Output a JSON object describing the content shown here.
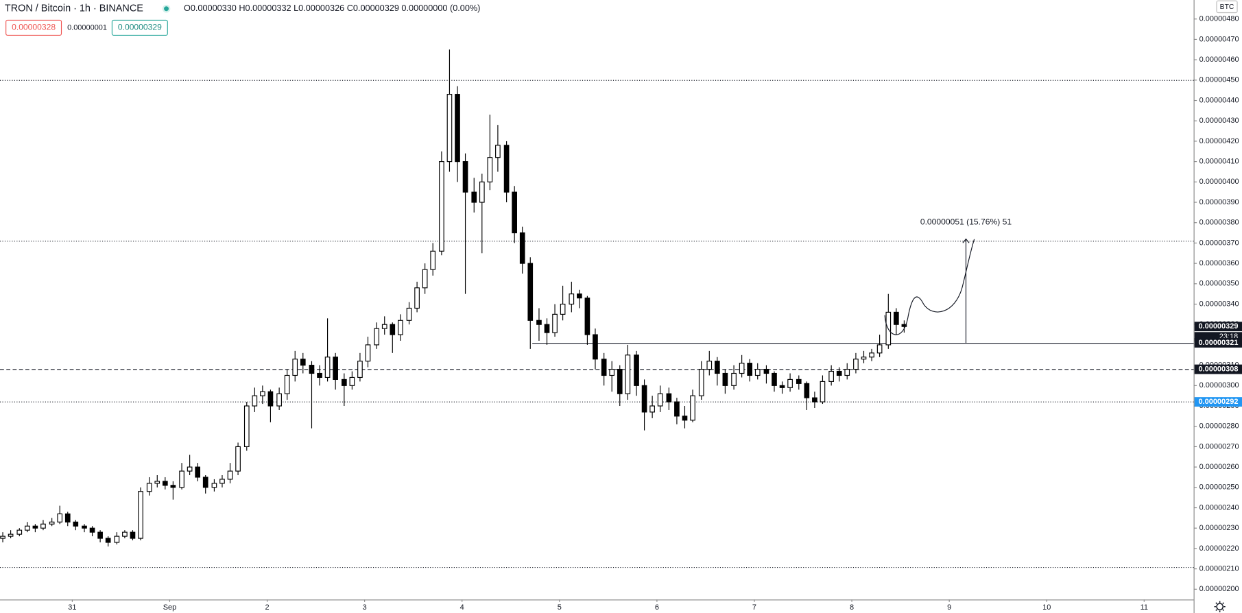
{
  "header": {
    "symbol": "TRON / Bitcoin · 1h · BINANCE",
    "ohlc_text": "O0.00000330 H0.00000332 L0.00000326 C0.00000329 0.00000000 (0.00%)",
    "bid": "0.00000328",
    "spread": "0.00000001",
    "ask": "0.00000329"
  },
  "chart_data": {
    "type": "candlestick",
    "currency": "BTC",
    "up_color": "#ffffff",
    "down_color": "#000000",
    "outline_color": "#000000",
    "grid": false,
    "xlim": [
      -0.3,
      146.7
    ],
    "ylim": [
      1.9533e-06,
      4.8933e-06
    ],
    "xticks": [
      {
        "value": 8.6,
        "label": "31"
      },
      {
        "value": 20.6,
        "label": "Sep"
      },
      {
        "value": 32.6,
        "label": "2"
      },
      {
        "value": 44.6,
        "label": "3"
      },
      {
        "value": 56.6,
        "label": "4"
      },
      {
        "value": 68.6,
        "label": "5"
      },
      {
        "value": 80.6,
        "label": "6"
      },
      {
        "value": 92.6,
        "label": "7"
      },
      {
        "value": 104.6,
        "label": "8"
      },
      {
        "value": 116.6,
        "label": "9"
      },
      {
        "value": 128.6,
        "label": "10"
      },
      {
        "value": 140.6,
        "label": "11"
      }
    ],
    "yticks": [
      {
        "value": 4.8e-06,
        "label": "0.00000480"
      },
      {
        "value": 4.7e-06,
        "label": "0.00000470"
      },
      {
        "value": 4.6e-06,
        "label": "0.00000460"
      },
      {
        "value": 4.5e-06,
        "label": "0.00000450"
      },
      {
        "value": 4.4e-06,
        "label": "0.00000440"
      },
      {
        "value": 4.3e-06,
        "label": "0.00000430"
      },
      {
        "value": 4.2e-06,
        "label": "0.00000420"
      },
      {
        "value": 4.1e-06,
        "label": "0.00000410"
      },
      {
        "value": 4e-06,
        "label": "0.00000400"
      },
      {
        "value": 3.9e-06,
        "label": "0.00000390"
      },
      {
        "value": 3.8e-06,
        "label": "0.00000380"
      },
      {
        "value": 3.7e-06,
        "label": "0.00000370"
      },
      {
        "value": 3.6e-06,
        "label": "0.00000360"
      },
      {
        "value": 3.5e-06,
        "label": "0.00000350"
      },
      {
        "value": 3.4e-06,
        "label": "0.00000340"
      },
      {
        "value": 3.3e-06,
        "label": "0.00000330"
      },
      {
        "value": 3.2e-06,
        "label": "0.00000320"
      },
      {
        "value": 3.1e-06,
        "label": "0.00000310"
      },
      {
        "value": 3e-06,
        "label": "0.00000300"
      },
      {
        "value": 2.9e-06,
        "label": "0.00000290"
      },
      {
        "value": 2.8e-06,
        "label": "0.00000280"
      },
      {
        "value": 2.7e-06,
        "label": "0.00000270"
      },
      {
        "value": 2.6e-06,
        "label": "0.00000260"
      },
      {
        "value": 2.5e-06,
        "label": "0.00000250"
      },
      {
        "value": 2.4e-06,
        "label": "0.00000240"
      },
      {
        "value": 2.3e-06,
        "label": "0.00000230"
      },
      {
        "value": 2.2e-06,
        "label": "0.00000220"
      },
      {
        "value": 2.1e-06,
        "label": "0.00000210"
      },
      {
        "value": 2e-06,
        "label": "0.00000200"
      }
    ],
    "ohlc": [
      [
        2.25e-06,
        2.28e-06,
        2.23e-06,
        2.26e-06
      ],
      [
        2.26e-06,
        2.29e-06,
        2.25e-06,
        2.27e-06
      ],
      [
        2.27e-06,
        2.3e-06,
        2.26e-06,
        2.29e-06
      ],
      [
        2.29e-06,
        2.33e-06,
        2.28e-06,
        2.31e-06
      ],
      [
        2.31e-06,
        2.32e-06,
        2.28e-06,
        2.3e-06
      ],
      [
        2.3e-06,
        2.34e-06,
        2.29e-06,
        2.32e-06
      ],
      [
        2.32e-06,
        2.35e-06,
        2.31e-06,
        2.33e-06
      ],
      [
        2.33e-06,
        2.41e-06,
        2.32e-06,
        2.37e-06
      ],
      [
        2.37e-06,
        2.38e-06,
        2.31e-06,
        2.33e-06
      ],
      [
        2.33e-06,
        2.34e-06,
        2.29e-06,
        2.31e-06
      ],
      [
        2.31e-06,
        2.32e-06,
        2.28e-06,
        2.3e-06
      ],
      [
        2.3e-06,
        2.31e-06,
        2.26e-06,
        2.28e-06
      ],
      [
        2.28e-06,
        2.29e-06,
        2.23e-06,
        2.25e-06
      ],
      [
        2.25e-06,
        2.26e-06,
        2.21e-06,
        2.23e-06
      ],
      [
        2.23e-06,
        2.28e-06,
        2.22e-06,
        2.26e-06
      ],
      [
        2.26e-06,
        2.29e-06,
        2.25e-06,
        2.28e-06
      ],
      [
        2.28e-06,
        2.29e-06,
        2.24e-06,
        2.25e-06
      ],
      [
        2.25e-06,
        2.5e-06,
        2.24e-06,
        2.48e-06
      ],
      [
        2.48e-06,
        2.55e-06,
        2.46e-06,
        2.52e-06
      ],
      [
        2.52e-06,
        2.56e-06,
        2.5e-06,
        2.53e-06
      ],
      [
        2.53e-06,
        2.55e-06,
        2.49e-06,
        2.51e-06
      ],
      [
        2.51e-06,
        2.53e-06,
        2.44e-06,
        2.5e-06
      ],
      [
        2.5e-06,
        2.62e-06,
        2.49e-06,
        2.58e-06
      ],
      [
        2.58e-06,
        2.66e-06,
        2.56e-06,
        2.6e-06
      ],
      [
        2.6e-06,
        2.62e-06,
        2.53e-06,
        2.55e-06
      ],
      [
        2.55e-06,
        2.56e-06,
        2.47e-06,
        2.5e-06
      ],
      [
        2.5e-06,
        2.54e-06,
        2.48e-06,
        2.52e-06
      ],
      [
        2.52e-06,
        2.56e-06,
        2.5e-06,
        2.54e-06
      ],
      [
        2.54e-06,
        2.62e-06,
        2.52e-06,
        2.58e-06
      ],
      [
        2.58e-06,
        2.72e-06,
        2.56e-06,
        2.7e-06
      ],
      [
        2.7e-06,
        2.92e-06,
        2.68e-06,
        2.9e-06
      ],
      [
        2.9e-06,
        2.99e-06,
        2.87e-06,
        2.95e-06
      ],
      [
        2.95e-06,
        3e-06,
        2.91e-06,
        2.97e-06
      ],
      [
        2.97e-06,
        2.98e-06,
        2.82e-06,
        2.9e-06
      ],
      [
        2.9e-06,
        2.99e-06,
        2.88e-06,
        2.96e-06
      ],
      [
        2.96e-06,
        3.08e-06,
        2.93e-06,
        3.05e-06
      ],
      [
        3.05e-06,
        3.17e-06,
        3.02e-06,
        3.13e-06
      ],
      [
        3.13e-06,
        3.16e-06,
        3.06e-06,
        3.1e-06
      ],
      [
        3.1e-06,
        3.12e-06,
        2.79e-06,
        3.06e-06
      ],
      [
        3.06e-06,
        3.1e-06,
        3e-06,
        3.04e-06
      ],
      [
        3.04e-06,
        3.33e-06,
        3.02e-06,
        3.14e-06
      ],
      [
        3.14e-06,
        3.16e-06,
        2.98e-06,
        3.03e-06
      ],
      [
        3.03e-06,
        3.06e-06,
        2.9e-06,
        3e-06
      ],
      [
        3e-06,
        3.07e-06,
        2.98e-06,
        3.04e-06
      ],
      [
        3.04e-06,
        3.16e-06,
        3.02e-06,
        3.12e-06
      ],
      [
        3.12e-06,
        3.24e-06,
        3.09e-06,
        3.2e-06
      ],
      [
        3.2e-06,
        3.31e-06,
        3.18e-06,
        3.28e-06
      ],
      [
        3.28e-06,
        3.34e-06,
        3.25e-06,
        3.3e-06
      ],
      [
        3.3e-06,
        3.31e-06,
        3.16e-06,
        3.25e-06
      ],
      [
        3.25e-06,
        3.35e-06,
        3.22e-06,
        3.32e-06
      ],
      [
        3.32e-06,
        3.41e-06,
        3.3e-06,
        3.38e-06
      ],
      [
        3.38e-06,
        3.51e-06,
        3.36e-06,
        3.48e-06
      ],
      [
        3.48e-06,
        3.6e-06,
        3.45e-06,
        3.57e-06
      ],
      [
        3.57e-06,
        3.7e-06,
        3.54e-06,
        3.66e-06
      ],
      [
        3.66e-06,
        4.15e-06,
        3.64e-06,
        4.1e-06
      ],
      [
        4.1e-06,
        4.65e-06,
        4.05e-06,
        4.43e-06
      ],
      [
        4.43e-06,
        4.47e-06,
        4e-06,
        4.1e-06
      ],
      [
        4.1e-06,
        4.14e-06,
        3.45e-06,
        3.95e-06
      ],
      [
        3.95e-06,
        4.02e-06,
        3.85e-06,
        3.9e-06
      ],
      [
        3.9e-06,
        4.04e-06,
        3.65e-06,
        4e-06
      ],
      [
        4e-06,
        4.33e-06,
        3.96e-06,
        4.12e-06
      ],
      [
        4.12e-06,
        4.28e-06,
        4.05e-06,
        4.18e-06
      ],
      [
        4.18e-06,
        4.2e-06,
        3.9e-06,
        3.95e-06
      ],
      [
        3.95e-06,
        3.98e-06,
        3.7e-06,
        3.75e-06
      ],
      [
        3.75e-06,
        3.78e-06,
        3.55e-06,
        3.6e-06
      ],
      [
        3.6e-06,
        3.63e-06,
        3.18e-06,
        3.32e-06
      ],
      [
        3.32e-06,
        3.38e-06,
        3.22e-06,
        3.3e-06
      ],
      [
        3.3e-06,
        3.33e-06,
        3.2e-06,
        3.26e-06
      ],
      [
        3.26e-06,
        3.4e-06,
        3.24e-06,
        3.35e-06
      ],
      [
        3.35e-06,
        3.49e-06,
        3.32e-06,
        3.4e-06
      ],
      [
        3.4e-06,
        3.51e-06,
        3.36e-06,
        3.45e-06
      ],
      [
        3.45e-06,
        3.47e-06,
        3.38e-06,
        3.43e-06
      ],
      [
        3.43e-06,
        3.44e-06,
        3.2e-06,
        3.25e-06
      ],
      [
        3.25e-06,
        3.28e-06,
        3.08e-06,
        3.13e-06
      ],
      [
        3.13e-06,
        3.16e-06,
        3e-06,
        3.05e-06
      ],
      [
        3.05e-06,
        3.12e-06,
        2.97e-06,
        3.08e-06
      ],
      [
        3.08e-06,
        3.1e-06,
        2.9e-06,
        2.96e-06
      ],
      [
        2.96e-06,
        3.2e-06,
        2.93e-06,
        3.15e-06
      ],
      [
        3.15e-06,
        3.17e-06,
        2.95e-06,
        3e-06
      ],
      [
        3e-06,
        3.03e-06,
        2.78e-06,
        2.87e-06
      ],
      [
        2.87e-06,
        2.95e-06,
        2.84e-06,
        2.9e-06
      ],
      [
        2.9e-06,
        3e-06,
        2.87e-06,
        2.96e-06
      ],
      [
        2.96e-06,
        2.99e-06,
        2.88e-06,
        2.92e-06
      ],
      [
        2.92e-06,
        2.94e-06,
        2.81e-06,
        2.85e-06
      ],
      [
        2.85e-06,
        2.9e-06,
        2.79e-06,
        2.83e-06
      ],
      [
        2.83e-06,
        2.98e-06,
        2.82e-06,
        2.95e-06
      ],
      [
        2.95e-06,
        3.12e-06,
        2.93e-06,
        3.08e-06
      ],
      [
        3.08e-06,
        3.17e-06,
        3.05e-06,
        3.12e-06
      ],
      [
        3.12e-06,
        3.14e-06,
        3e-06,
        3.06e-06
      ],
      [
        3.06e-06,
        3.08e-06,
        2.96e-06,
        3e-06
      ],
      [
        3e-06,
        3.1e-06,
        2.98e-06,
        3.06e-06
      ],
      [
        3.06e-06,
        3.15e-06,
        3.04e-06,
        3.11e-06
      ],
      [
        3.11e-06,
        3.13e-06,
        3.02e-06,
        3.05e-06
      ],
      [
        3.05e-06,
        3.11e-06,
        3.03e-06,
        3.08e-06
      ],
      [
        3.08e-06,
        3.1e-06,
        3.01e-06,
        3.06e-06
      ],
      [
        3.06e-06,
        3.07e-06,
        2.97e-06,
        3e-06
      ],
      [
        3e-06,
        3.02e-06,
        2.96e-06,
        2.99e-06
      ],
      [
        2.99e-06,
        3.06e-06,
        2.97e-06,
        3.03e-06
      ],
      [
        3.03e-06,
        3.05e-06,
        2.98e-06,
        3.01e-06
      ],
      [
        3.01e-06,
        3.02e-06,
        2.88e-06,
        2.94e-06
      ],
      [
        2.94e-06,
        2.97e-06,
        2.89e-06,
        2.92e-06
      ],
      [
        2.92e-06,
        3.05e-06,
        2.91e-06,
        3.02e-06
      ],
      [
        3.02e-06,
        3.1e-06,
        3e-06,
        3.07e-06
      ],
      [
        3.07e-06,
        3.09e-06,
        3.02e-06,
        3.05e-06
      ],
      [
        3.05e-06,
        3.11e-06,
        3.03e-06,
        3.08e-06
      ],
      [
        3.08e-06,
        3.16e-06,
        3.06e-06,
        3.13e-06
      ],
      [
        3.13e-06,
        3.17e-06,
        3.11e-06,
        3.14e-06
      ],
      [
        3.14e-06,
        3.18e-06,
        3.12e-06,
        3.16e-06
      ],
      [
        3.16e-06,
        3.25e-06,
        3.14e-06,
        3.2e-06
      ],
      [
        3.2e-06,
        3.45e-06,
        3.18e-06,
        3.36e-06
      ],
      [
        3.36e-06,
        3.38e-06,
        3.25e-06,
        3.3e-06
      ],
      [
        3.3e-06,
        3.32e-06,
        3.26e-06,
        3.29e-06
      ]
    ],
    "levels": [
      {
        "value": 4.5e-06,
        "style": "dotted"
      },
      {
        "value": 3.71e-06,
        "style": "dotted"
      },
      {
        "value": 3.21e-06,
        "style": "solid"
      },
      {
        "value": 3.08e-06,
        "style": "dashed"
      },
      {
        "value": 2.92e-06,
        "style": "dotted"
      },
      {
        "value": 2.11e-06,
        "style": "dotted"
      }
    ],
    "price_labels": [
      {
        "value": 3.29e-06,
        "label": "0.00000329",
        "color": "#131722"
      },
      {
        "value": 3.21e-06,
        "label": "0.00000321",
        "color": "#131722"
      },
      {
        "value": 3.08e-06,
        "label": "0.00000308",
        "color": "#131722"
      },
      {
        "value": 2.92e-06,
        "label": "0.00000292",
        "color": "#2196f3"
      }
    ],
    "countdown": "23:18",
    "measure": {
      "value": 5.1e-07,
      "label": "0.00000051 (15.76%) 51"
    }
  }
}
